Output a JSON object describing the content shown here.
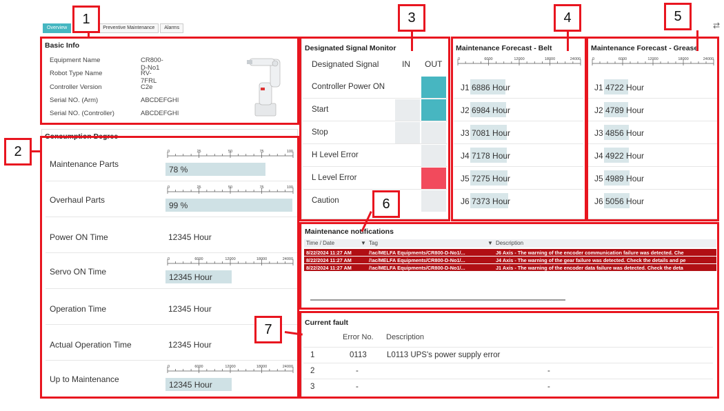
{
  "tabs": [
    {
      "label": "Overview",
      "active": true
    },
    {
      "label": "Preventive Maintenance",
      "active": false
    },
    {
      "label": "Alarms",
      "active": false
    }
  ],
  "callouts": [
    "1",
    "2",
    "3",
    "4",
    "5",
    "6",
    "7"
  ],
  "basic_info": {
    "title": "Basic Info",
    "rows": [
      {
        "key": "Equipment Name",
        "value": "CR800-D-No1"
      },
      {
        "key": "Robot Type Name",
        "value": "RV-7FRL"
      },
      {
        "key": "Controller Version",
        "value": "C2e"
      },
      {
        "key": "Serial NO. (Arm)",
        "value": "ABCDEFGHI"
      },
      {
        "key": "Serial NO. (Controller)",
        "value": "ABCDEFGHI"
      }
    ]
  },
  "consumption": {
    "title": "Consumption Degree",
    "scale_pct": [
      "0",
      "25",
      "50",
      "75",
      "100"
    ],
    "scale_hours": [
      "0",
      "6000",
      "12000",
      "18000",
      "24000"
    ],
    "rows": [
      {
        "label": "Maintenance Parts",
        "value": "78 %",
        "fraction": 0.78,
        "kind": "bar-pct"
      },
      {
        "label": "Overhaul Parts",
        "value": "99 %",
        "fraction": 0.99,
        "kind": "bar-pct"
      },
      {
        "label": "Power ON Time",
        "value": "12345 Hour",
        "kind": "text"
      },
      {
        "label": "Servo ON Time",
        "value": "12345 Hour",
        "fraction": 0.514,
        "kind": "bar-hours"
      },
      {
        "label": "Operation Time",
        "value": "12345 Hour",
        "kind": "text"
      },
      {
        "label": "Actual Operation Time",
        "value": "12345 Hour",
        "kind": "text"
      },
      {
        "label": "Up to Maintenance",
        "value": "12345 Hour",
        "fraction": 0.514,
        "kind": "bar-hours"
      }
    ]
  },
  "signal_monitor": {
    "title": "Designated Signal Monitor",
    "col_signal": "Designated Signal",
    "col_in": "IN",
    "col_out": "OUT",
    "rows": [
      {
        "label": "Controller Power ON",
        "in": "none",
        "out": "on"
      },
      {
        "label": "Start",
        "in": "off",
        "out": "on"
      },
      {
        "label": "Stop",
        "in": "off",
        "out": "off"
      },
      {
        "label": "H Level Error",
        "in": "none",
        "out": "off"
      },
      {
        "label": "L Level Error",
        "in": "none",
        "out": "alarm"
      },
      {
        "label": "Caution",
        "in": "none",
        "out": "off"
      }
    ],
    "colors": {
      "on": "#47b6c1",
      "alarm": "#f24a5c",
      "off": "#e9ecee"
    }
  },
  "forecast_belt": {
    "title": "Maintenance Forecast - Belt",
    "scale": [
      "0",
      "6000",
      "12000",
      "18000",
      "24000"
    ],
    "rows": [
      {
        "axis": "J1",
        "value": "6886 Hour",
        "hours": 6886
      },
      {
        "axis": "J2",
        "value": "6984 Hour",
        "hours": 6984
      },
      {
        "axis": "J3",
        "value": "7081 Hour",
        "hours": 7081
      },
      {
        "axis": "J4",
        "value": "7178 Hour",
        "hours": 7178
      },
      {
        "axis": "J5",
        "value": "7275 Hour",
        "hours": 7275
      },
      {
        "axis": "J6",
        "value": "7373 Hour",
        "hours": 7373
      }
    ]
  },
  "forecast_grease": {
    "title": "Maintenance Forecast - Grease",
    "scale": [
      "0",
      "6000",
      "12000",
      "18000",
      "24000"
    ],
    "rows": [
      {
        "axis": "J1",
        "value": "4722 Hour",
        "hours": 4722
      },
      {
        "axis": "J2",
        "value": "4789 Hour",
        "hours": 4789
      },
      {
        "axis": "J3",
        "value": "4856 Hour",
        "hours": 4856
      },
      {
        "axis": "J4",
        "value": "4922 Hour",
        "hours": 4922
      },
      {
        "axis": "J5",
        "value": "4989 Hour",
        "hours": 4989
      },
      {
        "axis": "J6",
        "value": "5056 Hour",
        "hours": 5056
      }
    ]
  },
  "notifications": {
    "title": "Maintenance notifications",
    "col_time": "Time / Date",
    "col_tag": "Tag",
    "col_desc": "Description",
    "rows": [
      {
        "time": "8/22/2024 11:27 AM",
        "tag": "/!ac/MELFA Equipments/CR800-D-No1/...",
        "desc": "J6 Axis - The warning of the encoder communication failure was detected. Che"
      },
      {
        "time": "8/22/2024 11:27 AM",
        "tag": "/!ac/MELFA Equipments/CR800-D-No1/...",
        "desc": "J4 Axis - The warning of the gear failure was detected. Check the details and pe"
      },
      {
        "time": "8/22/2024 11:27 AM",
        "tag": "/!ac/MELFA Equipments/CR800-D-No1/...",
        "desc": "J1 Axis - The warning of the encoder data failure was detected. Check the deta"
      }
    ]
  },
  "current_fault": {
    "title": "Current fault",
    "col_error": "Error No.",
    "col_desc": "Description",
    "rows": [
      {
        "index": "1",
        "error": "0113",
        "desc": "L0113 UPS's power supply error"
      },
      {
        "index": "2",
        "error": "-",
        "desc": "-"
      },
      {
        "index": "3",
        "error": "-",
        "desc": "-"
      }
    ]
  }
}
